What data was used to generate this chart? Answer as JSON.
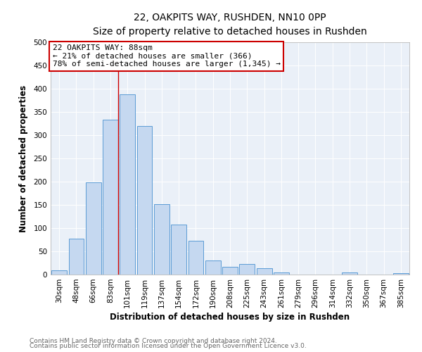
{
  "title": "22, OAKPITS WAY, RUSHDEN, NN10 0PP",
  "subtitle": "Size of property relative to detached houses in Rushden",
  "xlabel": "Distribution of detached houses by size in Rushden",
  "ylabel": "Number of detached properties",
  "bin_labels": [
    "30sqm",
    "48sqm",
    "66sqm",
    "83sqm",
    "101sqm",
    "119sqm",
    "137sqm",
    "154sqm",
    "172sqm",
    "190sqm",
    "208sqm",
    "225sqm",
    "243sqm",
    "261sqm",
    "279sqm",
    "296sqm",
    "314sqm",
    "332sqm",
    "350sqm",
    "367sqm",
    "385sqm"
  ],
  "bin_values": [
    9,
    78,
    198,
    333,
    388,
    320,
    151,
    108,
    73,
    30,
    17,
    22,
    14,
    5,
    0,
    0,
    0,
    4,
    0,
    0,
    3
  ],
  "bar_color": "#c5d8f0",
  "bar_edge_color": "#5b9bd5",
  "vline_x_index": 3,
  "vline_color": "#cc0000",
  "annotation_line1": "22 OAKPITS WAY: 88sqm",
  "annotation_line2": "← 21% of detached houses are smaller (366)",
  "annotation_line3": "78% of semi-detached houses are larger (1,345) →",
  "ylim": [
    0,
    500
  ],
  "yticks": [
    0,
    50,
    100,
    150,
    200,
    250,
    300,
    350,
    400,
    450,
    500
  ],
  "bg_color": "#eaf0f8",
  "footer_line1": "Contains HM Land Registry data © Crown copyright and database right 2024.",
  "footer_line2": "Contains public sector information licensed under the Open Government Licence v3.0.",
  "title_fontsize": 10,
  "subtitle_fontsize": 9,
  "axis_label_fontsize": 8.5,
  "tick_fontsize": 7.5,
  "annotation_fontsize": 8,
  "footer_fontsize": 6.5
}
